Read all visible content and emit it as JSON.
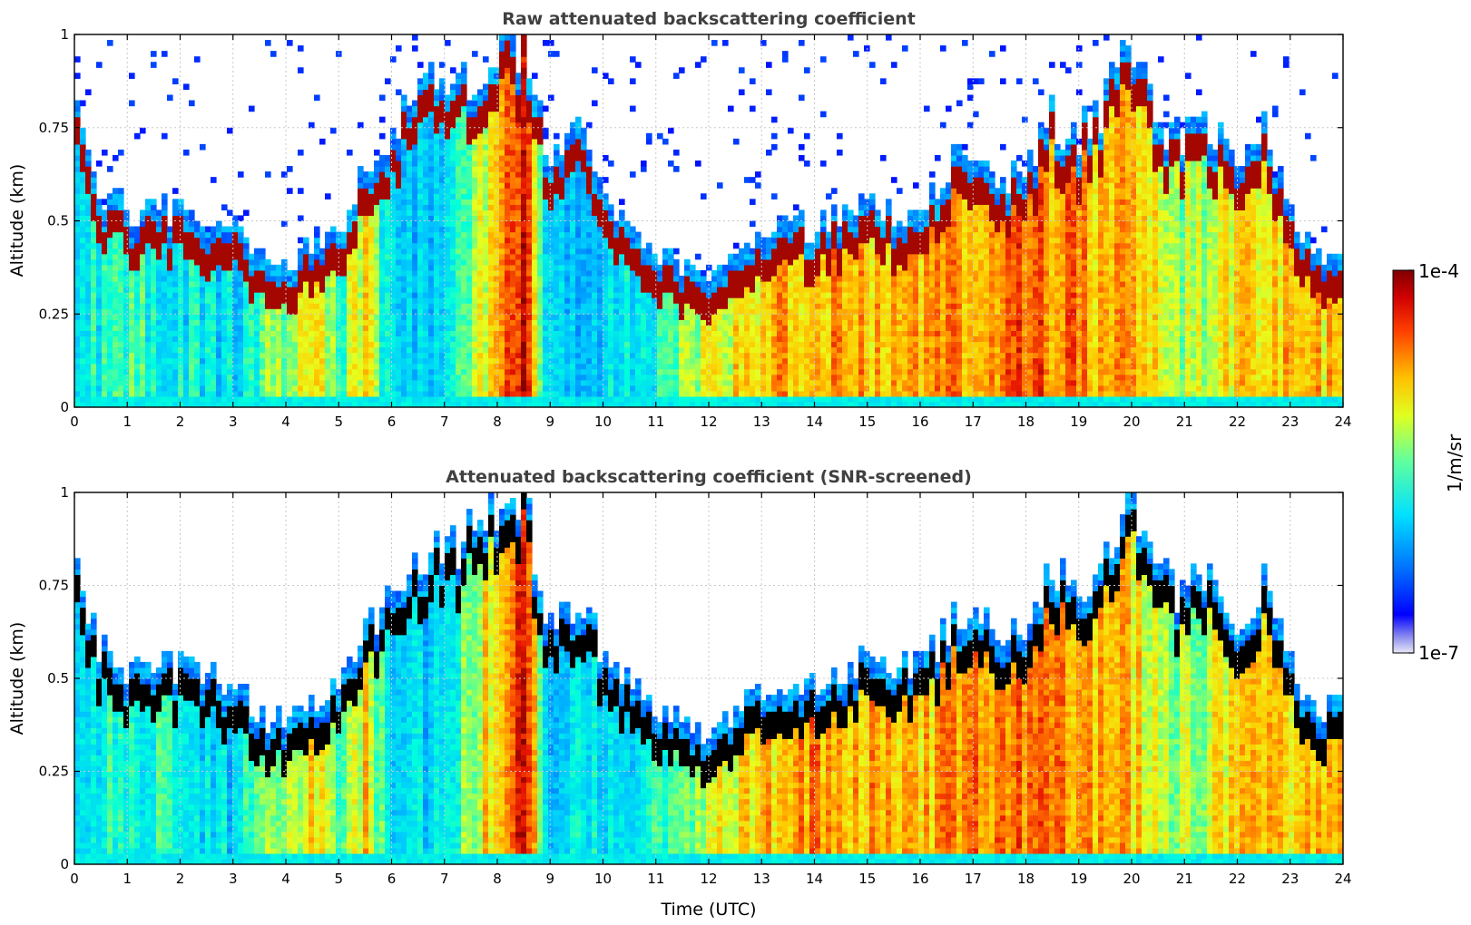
{
  "chart_data": [
    {
      "type": "heatmap",
      "title": "Raw attenuated backscattering coefficient",
      "xlabel": "",
      "ylabel": "Altitude (km)",
      "xlim": [
        0,
        24
      ],
      "ylim": [
        0,
        1
      ],
      "x_ticks": [
        "0",
        "1",
        "2",
        "3",
        "4",
        "5",
        "6",
        "7",
        "8",
        "9",
        "10",
        "11",
        "12",
        "13",
        "14",
        "15",
        "16",
        "17",
        "18",
        "19",
        "20",
        "21",
        "22",
        "23",
        "24"
      ],
      "y_ticks": [
        "0",
        "0.25",
        "0.5",
        "0.75",
        "1"
      ],
      "grid": true,
      "screened": false,
      "layer_top_km": [
        [
          0,
          0.8
        ],
        [
          0.5,
          0.55
        ],
        [
          1,
          0.5
        ],
        [
          1.5,
          0.5
        ],
        [
          2,
          0.5
        ],
        [
          2.5,
          0.48
        ],
        [
          3,
          0.46
        ],
        [
          3.3,
          0.4
        ],
        [
          3.5,
          0.36
        ],
        [
          4,
          0.36
        ],
        [
          4.5,
          0.4
        ],
        [
          5,
          0.45
        ],
        [
          5.5,
          0.6
        ],
        [
          6,
          0.7
        ],
        [
          6.5,
          0.8
        ],
        [
          7,
          0.85
        ],
        [
          7.5,
          0.85
        ],
        [
          8,
          0.9
        ],
        [
          8.5,
          0.95
        ],
        [
          9,
          0.6
        ],
        [
          9.5,
          0.7
        ],
        [
          10,
          0.55
        ],
        [
          10.5,
          0.45
        ],
        [
          11,
          0.38
        ],
        [
          11.5,
          0.35
        ],
        [
          12,
          0.3
        ],
        [
          12.5,
          0.38
        ],
        [
          13,
          0.45
        ],
        [
          13.5,
          0.48
        ],
        [
          14,
          0.45
        ],
        [
          14.5,
          0.5
        ],
        [
          15,
          0.52
        ],
        [
          15.5,
          0.5
        ],
        [
          16,
          0.5
        ],
        [
          16.5,
          0.6
        ],
        [
          17,
          0.65
        ],
        [
          17.5,
          0.55
        ],
        [
          18,
          0.62
        ],
        [
          18.5,
          0.75
        ],
        [
          19,
          0.7
        ],
        [
          19.5,
          0.8
        ],
        [
          20,
          0.92
        ],
        [
          20.5,
          0.75
        ],
        [
          21,
          0.7
        ],
        [
          21.5,
          0.72
        ],
        [
          22,
          0.6
        ],
        [
          22.5,
          0.75
        ],
        [
          23,
          0.5
        ],
        [
          23.5,
          0.38
        ],
        [
          24,
          0.4
        ]
      ]
    },
    {
      "type": "heatmap",
      "title": "Attenuated backscattering coefficient (SNR-screened)",
      "xlabel": "Time (UTC)",
      "ylabel": "Altitude (km)",
      "xlim": [
        0,
        24
      ],
      "ylim": [
        0,
        1
      ],
      "x_ticks": [
        "0",
        "1",
        "2",
        "3",
        "4",
        "5",
        "6",
        "7",
        "8",
        "9",
        "10",
        "11",
        "12",
        "13",
        "14",
        "15",
        "16",
        "17",
        "18",
        "19",
        "20",
        "21",
        "22",
        "23",
        "24"
      ],
      "y_ticks": [
        "0",
        "0.25",
        "0.5",
        "0.75",
        "1"
      ],
      "grid": true,
      "screened": true,
      "layer_top_km": [
        [
          0,
          0.8
        ],
        [
          0.5,
          0.55
        ],
        [
          1,
          0.5
        ],
        [
          1.5,
          0.5
        ],
        [
          2,
          0.5
        ],
        [
          2.5,
          0.48
        ],
        [
          3,
          0.46
        ],
        [
          3.3,
          0.4
        ],
        [
          3.5,
          0.36
        ],
        [
          4,
          0.36
        ],
        [
          4.5,
          0.4
        ],
        [
          5,
          0.45
        ],
        [
          5.5,
          0.6
        ],
        [
          6,
          0.7
        ],
        [
          6.5,
          0.8
        ],
        [
          7,
          0.85
        ],
        [
          7.5,
          0.85
        ],
        [
          8,
          0.9
        ],
        [
          8.5,
          0.95
        ],
        [
          9,
          0.6
        ],
        [
          9.5,
          0.7
        ],
        [
          10,
          0.55
        ],
        [
          10.5,
          0.45
        ],
        [
          11,
          0.38
        ],
        [
          11.5,
          0.35
        ],
        [
          12,
          0.3
        ],
        [
          12.5,
          0.38
        ],
        [
          13,
          0.45
        ],
        [
          13.5,
          0.48
        ],
        [
          14,
          0.45
        ],
        [
          14.5,
          0.5
        ],
        [
          15,
          0.52
        ],
        [
          15.5,
          0.5
        ],
        [
          16,
          0.5
        ],
        [
          16.5,
          0.6
        ],
        [
          17,
          0.65
        ],
        [
          17.5,
          0.55
        ],
        [
          18,
          0.62
        ],
        [
          18.5,
          0.75
        ],
        [
          19,
          0.7
        ],
        [
          19.5,
          0.8
        ],
        [
          20,
          0.92
        ],
        [
          20.5,
          0.75
        ],
        [
          21,
          0.7
        ],
        [
          21.5,
          0.72
        ],
        [
          22,
          0.6
        ],
        [
          22.5,
          0.75
        ],
        [
          23,
          0.5
        ],
        [
          23.5,
          0.38
        ],
        [
          24,
          0.4
        ]
      ]
    }
  ],
  "colorbar": {
    "label": "1/m/sr",
    "max_label": "1e-4",
    "min_label": "1e-7",
    "colormap": "jet"
  },
  "colors": {
    "grid": "#c8c8c8",
    "layer_peak": "#8b0000",
    "screened_peak": "#000000",
    "title": "#404040"
  }
}
